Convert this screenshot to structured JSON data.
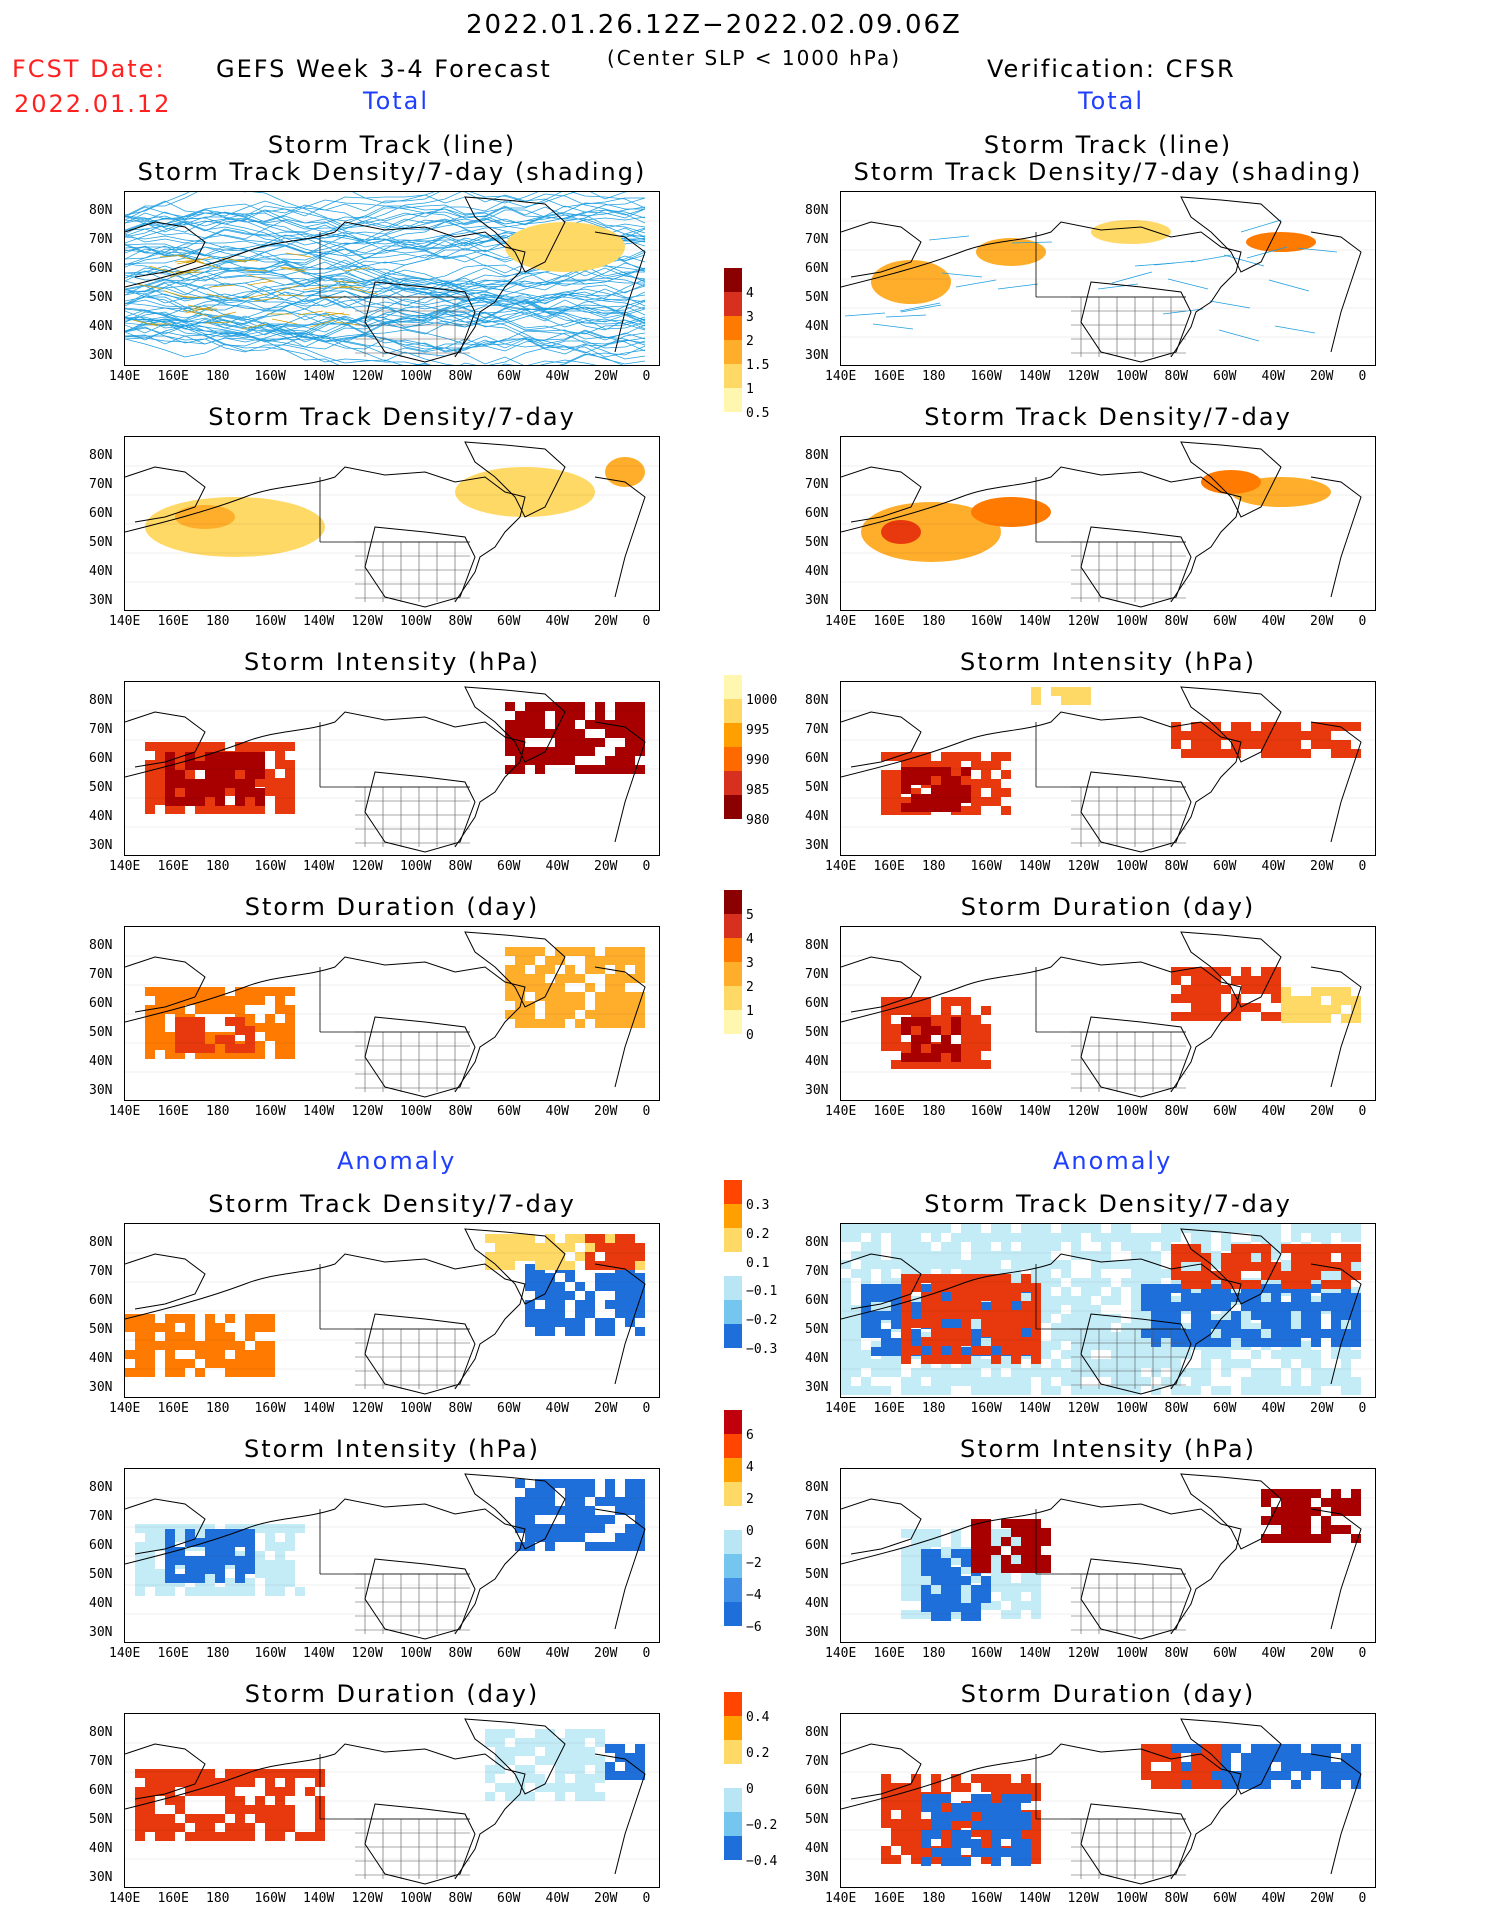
{
  "header": {
    "date_range": "2022.01.26.12Z−2022.02.09.06Z",
    "fcst_date_label": "FCST Date:",
    "fcst_date": "2022.01.12",
    "forecast_title": "GEFS Week 3-4 Forecast",
    "slp_note": "(Center SLP < 1000 hPa)",
    "verification": "Verification: CFSR"
  },
  "sections": {
    "total_left": "Total",
    "total_right": "Total",
    "anomaly_left": "Anomaly",
    "anomaly_right": "Anomaly"
  },
  "panel_titles": {
    "track_line": "Storm Track (line)",
    "track_density_shading": "Storm Track Density/7-day (shading)",
    "track_density": "Storm Track Density/7-day",
    "intensity": "Storm Intensity (hPa)",
    "duration": "Storm Duration (day)"
  },
  "axes": {
    "lat_labels": [
      "80N",
      "70N",
      "60N",
      "50N",
      "40N",
      "30N"
    ],
    "lon_labels": [
      "140E",
      "160E",
      "180",
      "160W",
      "140W",
      "120W",
      "100W",
      "80W",
      "60W",
      "40W",
      "20W",
      "0"
    ]
  },
  "colorbars": {
    "density": [
      "4",
      "3",
      "2",
      "1.5",
      "1",
      "0.5"
    ],
    "intensity": [
      "1000",
      "995",
      "990",
      "985",
      "980"
    ],
    "duration": [
      "5",
      "4",
      "3",
      "2",
      "1",
      "0"
    ],
    "density_anom": [
      "0.3",
      "0.2",
      "0.1",
      "−0.1",
      "−0.2",
      "−0.3"
    ],
    "intensity_anom": [
      "6",
      "4",
      "2",
      "0",
      "−2",
      "−4",
      "−6"
    ],
    "duration_anom": [
      "0.4",
      "0.2",
      "0",
      "−0.2",
      "−0.4"
    ]
  },
  "colors": {
    "title_red": "#ff2020",
    "section_blue": "#1f3fff",
    "track_line": "#1f9fe0"
  }
}
